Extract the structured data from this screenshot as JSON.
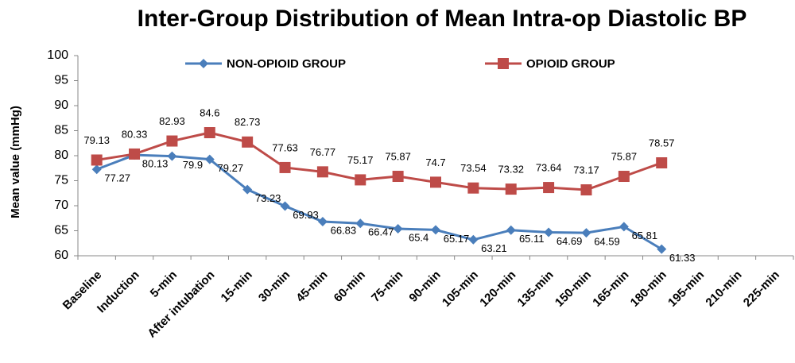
{
  "chart_data": {
    "type": "line",
    "title": "Inter-Group Distribution of Mean Intra-op Diastolic BP",
    "y_label": "Mean value (mmHg)",
    "categories": [
      "Baseline",
      "Induction",
      "5-min",
      "After intubation",
      "15-min",
      "30-min",
      "45-min",
      "60-min",
      "75-min",
      "90-min",
      "105-min",
      "120-min",
      "135-min",
      "150-min",
      "165-min",
      "180-min",
      "195-min",
      "210-min",
      "225-min"
    ],
    "series": [
      {
        "name": "NON-OPIOID GROUP",
        "color": "#4a7ebb",
        "marker": "diamond",
        "values": [
          77.27,
          80.13,
          79.9,
          79.27,
          73.23,
          69.93,
          66.83,
          66.47,
          65.4,
          65.17,
          63.21,
          65.11,
          64.69,
          64.59,
          65.81,
          61.33,
          null,
          null,
          null
        ]
      },
      {
        "name": "OPIOID GROUP",
        "color": "#be4b48",
        "marker": "square",
        "values": [
          79.13,
          80.33,
          82.93,
          84.6,
          82.73,
          77.63,
          76.77,
          75.17,
          75.87,
          74.7,
          73.54,
          73.32,
          73.64,
          73.17,
          75.87,
          78.57,
          null,
          null,
          null
        ]
      }
    ],
    "ylim": [
      60,
      100
    ],
    "yticks": [
      60,
      65,
      70,
      75,
      80,
      85,
      90,
      95,
      100
    ],
    "grid": false,
    "legend": "top"
  }
}
